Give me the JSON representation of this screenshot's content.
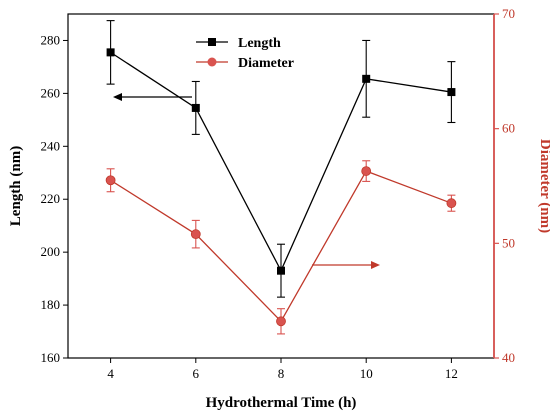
{
  "chart_data": {
    "type": "line",
    "title": "",
    "xlabel": "Hydrothermal Time (h)",
    "x": [
      4,
      6,
      8,
      10,
      12
    ],
    "xticks": [
      "4",
      "6",
      "8",
      "10",
      "12"
    ],
    "xlim": [
      3,
      13
    ],
    "grid": false,
    "legend_position": "top-center",
    "left_axis": {
      "label": "Length (nm)",
      "ylim": [
        160,
        290
      ],
      "ticks": [
        "160",
        "180",
        "200",
        "220",
        "240",
        "260",
        "280"
      ],
      "color": "#000000"
    },
    "right_axis": {
      "label": "Diameter (nm)",
      "ylim": [
        40,
        70
      ],
      "ticks": [
        "40",
        "50",
        "60",
        "70"
      ],
      "color": "#d9534f"
    },
    "series": [
      {
        "name": "Length",
        "axis": "left",
        "color": "#000000",
        "marker": "square",
        "values": [
          275.5,
          254.5,
          193,
          265.5,
          260.5
        ],
        "errors": [
          12,
          10,
          10,
          14.5,
          11.5
        ]
      },
      {
        "name": "Diameter",
        "axis": "right",
        "color": "#c0392b",
        "marker": "circle",
        "values": [
          55.5,
          50.8,
          43.2,
          56.3,
          53.5
        ],
        "errors": [
          1,
          1.2,
          1.1,
          0.9,
          0.7
        ]
      }
    ]
  }
}
